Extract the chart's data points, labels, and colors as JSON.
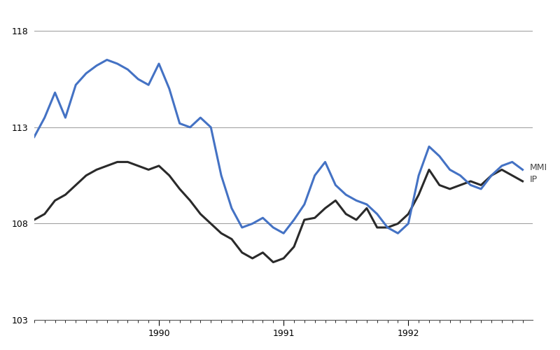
{
  "title": "",
  "ylabel": "",
  "xlabel": "",
  "ylim": [
    103,
    119
  ],
  "yticks": [
    103,
    108,
    113,
    118
  ],
  "background_color": "#ffffff",
  "grid_color": "#999999",
  "mmi_color": "#4472C4",
  "ip_color": "#2a2a2a",
  "mmi_label": "MMI",
  "ip_label": "IP",
  "mmi_values": [
    112.5,
    113.5,
    114.8,
    113.5,
    115.2,
    115.8,
    116.2,
    116.5,
    116.3,
    116.0,
    115.5,
    115.2,
    116.3,
    115.0,
    113.2,
    113.0,
    113.5,
    113.0,
    110.5,
    108.8,
    107.8,
    108.0,
    108.3,
    107.8,
    107.5,
    108.2,
    109.0,
    110.5,
    111.2,
    110.0,
    109.5,
    109.2,
    109.0,
    108.5,
    107.8,
    107.5,
    108.0,
    110.5,
    112.0,
    111.5,
    110.8,
    110.5,
    110.0,
    109.8,
    110.5,
    111.0,
    111.2,
    110.8
  ],
  "ip_values": [
    108.2,
    108.5,
    109.2,
    109.5,
    110.0,
    110.5,
    110.8,
    111.0,
    111.2,
    111.2,
    111.0,
    110.8,
    111.0,
    110.5,
    109.8,
    109.2,
    108.5,
    108.0,
    107.5,
    107.2,
    106.5,
    106.2,
    106.5,
    106.0,
    106.2,
    106.8,
    108.2,
    108.3,
    108.8,
    109.2,
    108.5,
    108.2,
    108.8,
    107.8,
    107.8,
    108.0,
    108.5,
    109.5,
    110.8,
    110.0,
    109.8,
    110.0,
    110.2,
    110.0,
    110.5,
    110.8,
    110.5,
    110.2
  ],
  "xlim": [
    1989.0,
    1993.0
  ],
  "year_labels": [
    1990,
    1991,
    1992
  ]
}
